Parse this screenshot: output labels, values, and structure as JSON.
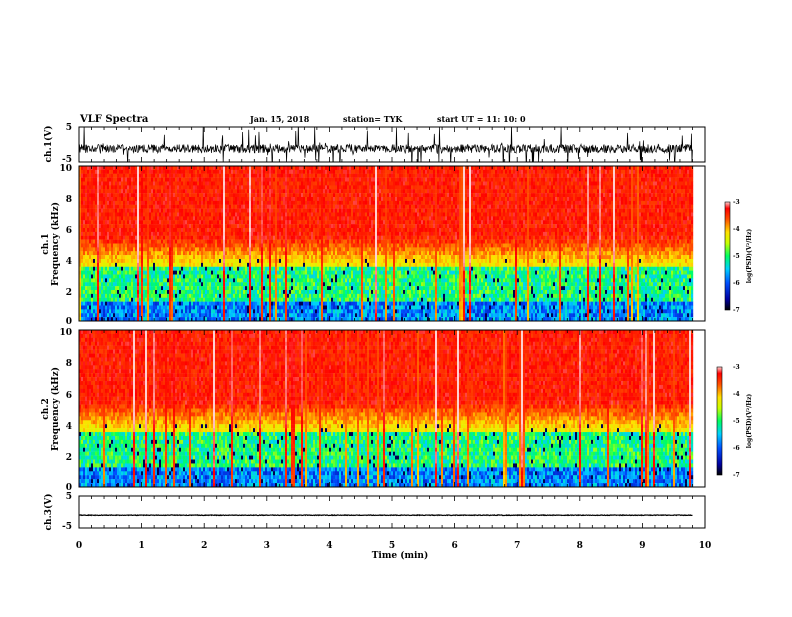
{
  "header": {
    "title": "VLF  Spectra",
    "date": "Jan. 15, 2018",
    "station": "station= TYK",
    "start_ut": "start  UT = 11: 10: 0"
  },
  "chart_data": [
    {
      "id": "ch1-waveform",
      "type": "line",
      "ylabel": "ch.1(V)",
      "ylim": [
        -5,
        5
      ],
      "yticks": [
        "5",
        "-5"
      ],
      "xlim": [
        0,
        10
      ],
      "data_extent_min": 9.8,
      "baseline_v": -1.2,
      "color": "#000000"
    },
    {
      "id": "ch1-spectrogram",
      "type": "heatmap",
      "ylabel_top": "ch.1",
      "ylabel": "Frequency  (kHz)",
      "ylim": [
        0,
        10
      ],
      "yticks": [
        "0",
        "2",
        "4",
        "6",
        "8",
        "10"
      ],
      "xlim": [
        0,
        10
      ],
      "data_extent_min": 9.8,
      "colorbar": {
        "label": "log(PSD)(V²/Hz)",
        "ticks": [
          "-3",
          "-4",
          "-5",
          "-6",
          "-7"
        ],
        "range": [
          -7,
          -3
        ]
      }
    },
    {
      "id": "ch2-spectrogram",
      "type": "heatmap",
      "ylabel_top": "ch.2",
      "ylabel": "Frequency  (kHz)",
      "ylim": [
        0,
        10
      ],
      "yticks": [
        "0",
        "2",
        "4",
        "6",
        "8",
        "10"
      ],
      "xlim": [
        0,
        10
      ],
      "data_extent_min": 9.8,
      "colorbar": {
        "label": "log(PSD)(V²/Hz)",
        "ticks": [
          "-3",
          "-4",
          "-5",
          "-6",
          "-7"
        ],
        "range": [
          -7,
          -3
        ]
      }
    },
    {
      "id": "ch3-waveform",
      "type": "line",
      "ylabel": "ch.3(V)",
      "ylim": [
        -5,
        5
      ],
      "yticks": [
        "5",
        "-5"
      ],
      "xlim": [
        0,
        10
      ],
      "data_extent_min": 9.8,
      "baseline_v": -1.0,
      "color": "#000000"
    }
  ],
  "xaxis": {
    "label": "Time  (min)",
    "ticks": [
      "0",
      "1",
      "2",
      "3",
      "4",
      "5",
      "6",
      "7",
      "8",
      "9",
      "10"
    ]
  },
  "colors": {
    "colormap": [
      "#000080",
      "#0000ff",
      "#00c8ff",
      "#00ff80",
      "#ffff00",
      "#ff8000",
      "#ff0000",
      "#ffffff"
    ]
  }
}
